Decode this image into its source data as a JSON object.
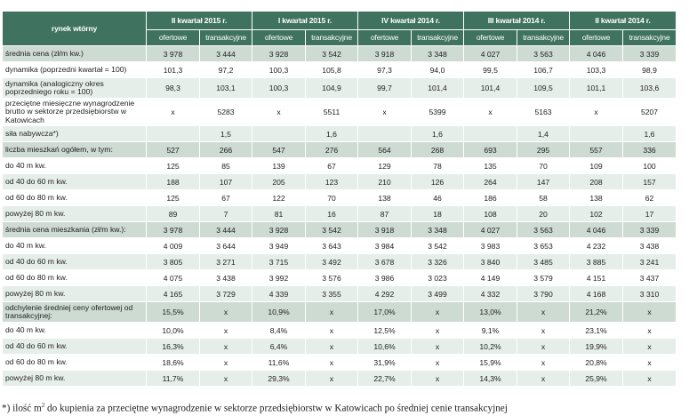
{
  "header": {
    "corner": "rynek wtórny",
    "quarters": [
      "II kwartał 2015 r.",
      "I kwartał 2015 r.",
      "IV kwartał 2014 r.",
      "III kwartał 2014 r.",
      "II kwartał 2014 r."
    ],
    "sub": [
      "ofertowe",
      "transakcyjne"
    ]
  },
  "rows": [
    {
      "label": "średnia cena (zł/m kw.)",
      "v": [
        "3 978",
        "3 444",
        "3 928",
        "3 542",
        "3 918",
        "3 348",
        "4 027",
        "3 563",
        "4 046",
        "3 339"
      ],
      "style": "sec"
    },
    {
      "label": "dynamika (poprzedni kwartał = 100)",
      "v": [
        "101,3",
        "97,2",
        "100,3",
        "105,8",
        "97,3",
        "94,0",
        "99,5",
        "106,7",
        "103,3",
        "98,9"
      ],
      "style": "r0"
    },
    {
      "label": "dynamika (analogiczny okres poprzedniego roku = 100)",
      "v": [
        "98,3",
        "103,1",
        "100,3",
        "104,9",
        "99,7",
        "101,4",
        "101,4",
        "109,5",
        "101,1",
        "103,6"
      ],
      "style": "r1",
      "h": "tall2"
    },
    {
      "label": "przeciętne miesięczne wynagrodzenie brutto w sektorze przedsiębiorstw w Katowicach",
      "v": [
        "x",
        "5283",
        "x",
        "5511",
        "x",
        "5399",
        "x",
        "5163",
        "x",
        "5207"
      ],
      "style": "r0",
      "h": "tall3"
    },
    {
      "label": "siła nabywcza*)",
      "v": [
        "",
        "1,5",
        "",
        "1,6",
        "",
        "1,6",
        "",
        "1,4",
        "",
        "1,6"
      ],
      "style": "r1"
    },
    {
      "label": "liczba mieszkań ogółem, w tym:",
      "v": [
        "527",
        "266",
        "547",
        "276",
        "564",
        "268",
        "693",
        "295",
        "557",
        "336"
      ],
      "style": "sec"
    },
    {
      "label": "do 40 m kw.",
      "v": [
        "125",
        "85",
        "139",
        "67",
        "129",
        "78",
        "135",
        "70",
        "109",
        "100"
      ],
      "style": "r0"
    },
    {
      "label": "od 40 do 60 m  kw.",
      "v": [
        "188",
        "107",
        "205",
        "123",
        "210",
        "126",
        "264",
        "147",
        "208",
        "157"
      ],
      "style": "r1"
    },
    {
      "label": "od 60 do 80 m kw.",
      "v": [
        "125",
        "67",
        "122",
        "70",
        "138",
        "46",
        "186",
        "58",
        "138",
        "62"
      ],
      "style": "r0"
    },
    {
      "label": "powyżej 80 m kw.",
      "v": [
        "89",
        "7",
        "81",
        "16",
        "87",
        "18",
        "108",
        "20",
        "102",
        "17"
      ],
      "style": "r1"
    },
    {
      "label": "średnia cena mieszkania (zł/m kw.):",
      "v": [
        "3 978",
        "3 444",
        "3 928",
        "3 542",
        "3 918",
        "3 348",
        "4 027",
        "3 563",
        "4 046",
        "3 339"
      ],
      "style": "sec"
    },
    {
      "label": "do 40 m kw.",
      "v": [
        "4 009",
        "3 644",
        "3 949",
        "3 643",
        "3 984",
        "3 542",
        "3 983",
        "3 653",
        "4 232",
        "3 438"
      ],
      "style": "r0"
    },
    {
      "label": "od 40 do 60 m  kw.",
      "v": [
        "3 805",
        "3 271",
        "3 715",
        "3 492",
        "3 678",
        "3 326",
        "3 840",
        "3 485",
        "3 885",
        "3 241"
      ],
      "style": "r1"
    },
    {
      "label": "od 60 do 80 m kw.",
      "v": [
        "4 075",
        "3 438",
        "3 992",
        "3 576",
        "3 986",
        "3 023",
        "4 149",
        "3 579",
        "4 151",
        "3 437"
      ],
      "style": "r0"
    },
    {
      "label": "powyżej 80 m kw.",
      "v": [
        "4 165",
        "3 729",
        "4 339",
        "3 355",
        "4 292",
        "3 499",
        "4 332",
        "3 790",
        "4 168",
        "3 310"
      ],
      "style": "r1"
    },
    {
      "label": "odchylenie średniej ceny ofertowej od transakcyjnej:",
      "v": [
        "15,5%",
        "x",
        "10,9%",
        "x",
        "17,0%",
        "x",
        "13,0%",
        "x",
        "21,2%",
        "x"
      ],
      "style": "sec",
      "h": "tall2"
    },
    {
      "label": "do 40 m kw.",
      "v": [
        "10,0%",
        "x",
        "8,4%",
        "x",
        "12,5%",
        "x",
        "9,1%",
        "x",
        "23,1%",
        "x"
      ],
      "style": "r0"
    },
    {
      "label": "od 40 do 60 m  kw.",
      "v": [
        "16,3%",
        "x",
        "6,4%",
        "x",
        "10,6%",
        "x",
        "10,2%",
        "x",
        "19,9%",
        "x"
      ],
      "style": "r1"
    },
    {
      "label": "od 60 do 80 m kw.",
      "v": [
        "18,6%",
        "x",
        "11,6%",
        "x",
        "31,9%",
        "x",
        "15,9%",
        "x",
        "20,8%",
        "x"
      ],
      "style": "r0"
    },
    {
      "label": "powyżej 80 m kw.",
      "v": [
        "11,7%",
        "x",
        "29,3%",
        "x",
        "22,7%",
        "x",
        "14,3%",
        "x",
        "25,9%",
        "x"
      ],
      "style": "r1"
    }
  ],
  "footnote": {
    "pre": "*) ilość m",
    "sup": "2",
    "post": " do kupienia za przeciętne wynagrodzenie w sektorze przedsiębiorstw w Katowicach po średniej cenie transakcyjnej"
  }
}
